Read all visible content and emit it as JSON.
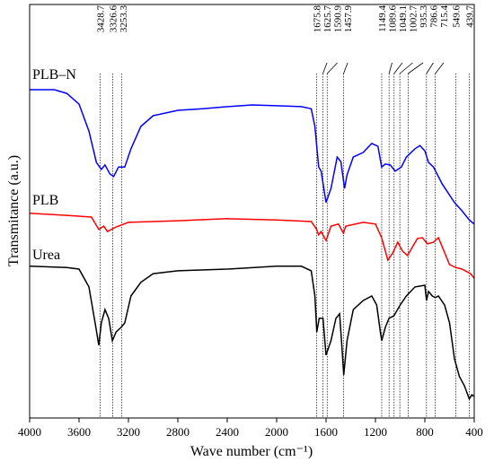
{
  "chart_data": {
    "type": "line",
    "xlabel": "Wave number (cm⁻¹)",
    "ylabel": "Transmitance (a.u.)",
    "xlim": [
      4000,
      400
    ],
    "xticks": [
      4000,
      3600,
      3200,
      2800,
      2400,
      2000,
      1600,
      1200,
      800,
      400
    ],
    "ylim": [
      0,
      100
    ],
    "peaks": [
      3428.7,
      3326.6,
      3253.3,
      1675.8,
      1625.7,
      1590.9,
      1457.9,
      1149.4,
      1089.6,
      1049.1,
      1002.7,
      935.3,
      786.6,
      715.4,
      549.6,
      439.7
    ],
    "series": [
      {
        "name": "PLB–N",
        "color": "#0000ff",
        "x": [
          4000,
          3800,
          3700,
          3600,
          3520,
          3460,
          3420,
          3390,
          3350,
          3320,
          3280,
          3230,
          3180,
          3100,
          3000,
          2800,
          2600,
          2400,
          2200,
          2000,
          1800,
          1720,
          1690,
          1660,
          1640,
          1600,
          1560,
          1510,
          1480,
          1450,
          1430,
          1380,
          1300,
          1230,
          1180,
          1150,
          1120,
          1080,
          1040,
          990,
          950,
          880,
          840,
          800,
          770,
          730,
          660,
          560,
          500,
          440,
          400
        ],
        "values": [
          79.4,
          79.4,
          78.5,
          75.9,
          69.4,
          61.8,
          60.1,
          61.2,
          59.0,
          58.4,
          60.7,
          60.7,
          65.1,
          70.5,
          73.1,
          74.4,
          74.8,
          75.3,
          75.7,
          75.5,
          75.3,
          74.8,
          70.5,
          60.7,
          59.7,
          52.1,
          55.5,
          63.1,
          62.0,
          55.5,
          58.8,
          63.1,
          64.2,
          66.4,
          65.7,
          60.7,
          61.4,
          61.2,
          59.7,
          60.7,
          63.1,
          65.1,
          65.9,
          64.6,
          61.8,
          60.7,
          56.6,
          52.1,
          50.1,
          47.9,
          46.9
        ]
      },
      {
        "name": "PLB",
        "color": "#ff0000",
        "x": [
          4000,
          3700,
          3500,
          3440,
          3400,
          3370,
          3300,
          3200,
          2800,
          2400,
          2000,
          1720,
          1680,
          1660,
          1640,
          1600,
          1560,
          1500,
          1460,
          1440,
          1300,
          1200,
          1150,
          1100,
          1060,
          1020,
          980,
          940,
          900,
          860,
          820,
          780,
          730,
          690,
          660,
          600,
          550,
          500,
          430,
          400
        ],
        "values": [
          49.5,
          49.0,
          48.6,
          45.6,
          46.4,
          45.1,
          46.2,
          47.3,
          47.7,
          48.2,
          47.9,
          47.5,
          45.8,
          44.3,
          45.1,
          42.9,
          46.4,
          46.9,
          44.7,
          46.4,
          47.3,
          46.9,
          43.6,
          38.2,
          39.9,
          42.5,
          40.3,
          39.3,
          41.4,
          43.4,
          43.6,
          42.1,
          42.5,
          43.6,
          41.4,
          37.1,
          36.4,
          36.0,
          34.9,
          33.8
        ]
      },
      {
        "name": "Urea",
        "color": "#000000",
        "x": [
          4000,
          3700,
          3600,
          3520,
          3470,
          3440,
          3420,
          3390,
          3360,
          3330,
          3300,
          3260,
          3230,
          3180,
          3100,
          3000,
          2800,
          2400,
          2000,
          1800,
          1720,
          1690,
          1675,
          1655,
          1625,
          1600,
          1560,
          1520,
          1490,
          1470,
          1457,
          1430,
          1380,
          1300,
          1230,
          1190,
          1160,
          1149,
          1120,
          1090,
          1050,
          1000,
          950,
          880,
          800,
          786,
          770,
          740,
          715,
          690,
          640,
          600,
          560,
          520,
          480,
          440,
          420,
          400
        ],
        "values": [
          36.7,
          36.4,
          36.0,
          31.7,
          23.0,
          17.6,
          23.0,
          26.2,
          24.1,
          18.7,
          20.8,
          21.9,
          23.0,
          29.5,
          32.8,
          34.9,
          35.6,
          36.0,
          36.7,
          36.7,
          35.6,
          29.5,
          20.8,
          24.1,
          24.1,
          15.2,
          18.7,
          24.1,
          25.2,
          16.5,
          10.4,
          18.7,
          26.2,
          28.4,
          29.5,
          27.3,
          20.8,
          18.7,
          21.9,
          24.1,
          24.7,
          27.3,
          29.5,
          31.7,
          32.1,
          28.4,
          30.6,
          29.5,
          29.1,
          29.5,
          27.3,
          23.0,
          14.3,
          10.0,
          7.8,
          4.6,
          5.6,
          5.2
        ]
      }
    ]
  }
}
